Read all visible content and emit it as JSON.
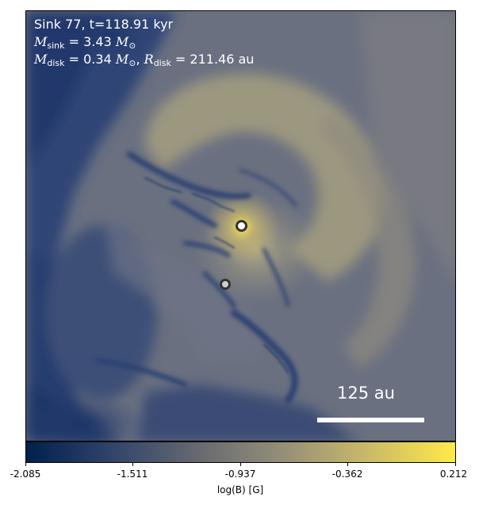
{
  "annotation": {
    "line1": "Sink 77, t=118.91 kyr",
    "m_sink_symbol": "M",
    "m_sink_sub": "sink",
    "m_sink_value": "= 3.43",
    "m_disk_symbol": "M",
    "m_disk_sub": "disk",
    "m_disk_value": "= 0.34",
    "r_disk_symbol": "R",
    "r_disk_sub": "disk",
    "r_disk_value": "= 211.46 au",
    "solar_symbol": "⊙"
  },
  "scale_bar": {
    "label": "125 au"
  },
  "colorbar": {
    "label": "log(B) [G]",
    "ticks": [
      "-2.085",
      "-1.511",
      "-0.937",
      "-0.362",
      "0.212"
    ],
    "colormap": "cividis",
    "colors": [
      "#00204d",
      "#31446b",
      "#666970",
      "#958f78",
      "#cbba69",
      "#ffea46"
    ]
  },
  "sinks": [
    {
      "label": "primary sink",
      "marker_fill": "#ffffff",
      "marker_edge": "#333333"
    },
    {
      "label": "secondary sink",
      "marker_fill": "#cfcfcf",
      "marker_edge": "#333333"
    }
  ]
}
